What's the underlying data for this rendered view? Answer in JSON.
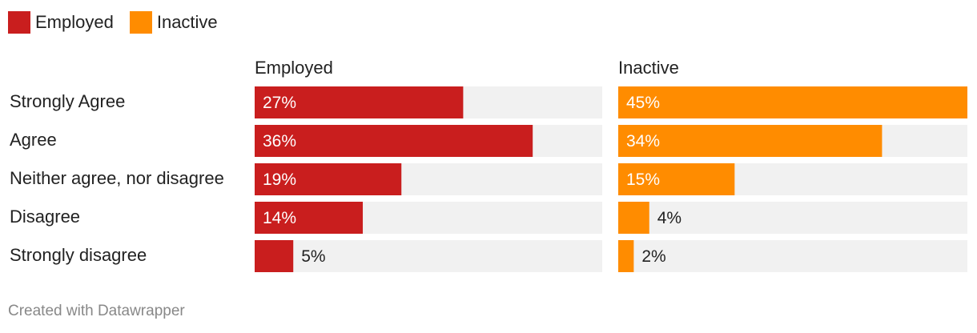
{
  "colors": {
    "employed": "#c91e1e",
    "inactive": "#ff8c00",
    "track": "#f1f1f1"
  },
  "legend": [
    {
      "label": "Employed",
      "color": "#c91e1e"
    },
    {
      "label": "Inactive",
      "color": "#ff8c00"
    }
  ],
  "chart_data": {
    "type": "bar",
    "orientation": "horizontal",
    "layout": "split-panels",
    "categories": [
      "Strongly Agree",
      "Agree",
      "Neither agree, nor disagree",
      "Disagree",
      "Strongly disagree"
    ],
    "series": [
      {
        "name": "Employed",
        "values": [
          27,
          36,
          19,
          14,
          5
        ],
        "labels": [
          "27%",
          "36%",
          "19%",
          "14%",
          "5%"
        ]
      },
      {
        "name": "Inactive",
        "values": [
          45,
          34,
          15,
          4,
          2
        ],
        "labels": [
          "45%",
          "34%",
          "15%",
          "4%",
          "2%"
        ]
      }
    ],
    "unit": "%",
    "xlim": [
      0,
      45
    ],
    "grid": false,
    "legend_position": "top-left"
  },
  "footer": {
    "credit": "Created with Datawrapper"
  }
}
